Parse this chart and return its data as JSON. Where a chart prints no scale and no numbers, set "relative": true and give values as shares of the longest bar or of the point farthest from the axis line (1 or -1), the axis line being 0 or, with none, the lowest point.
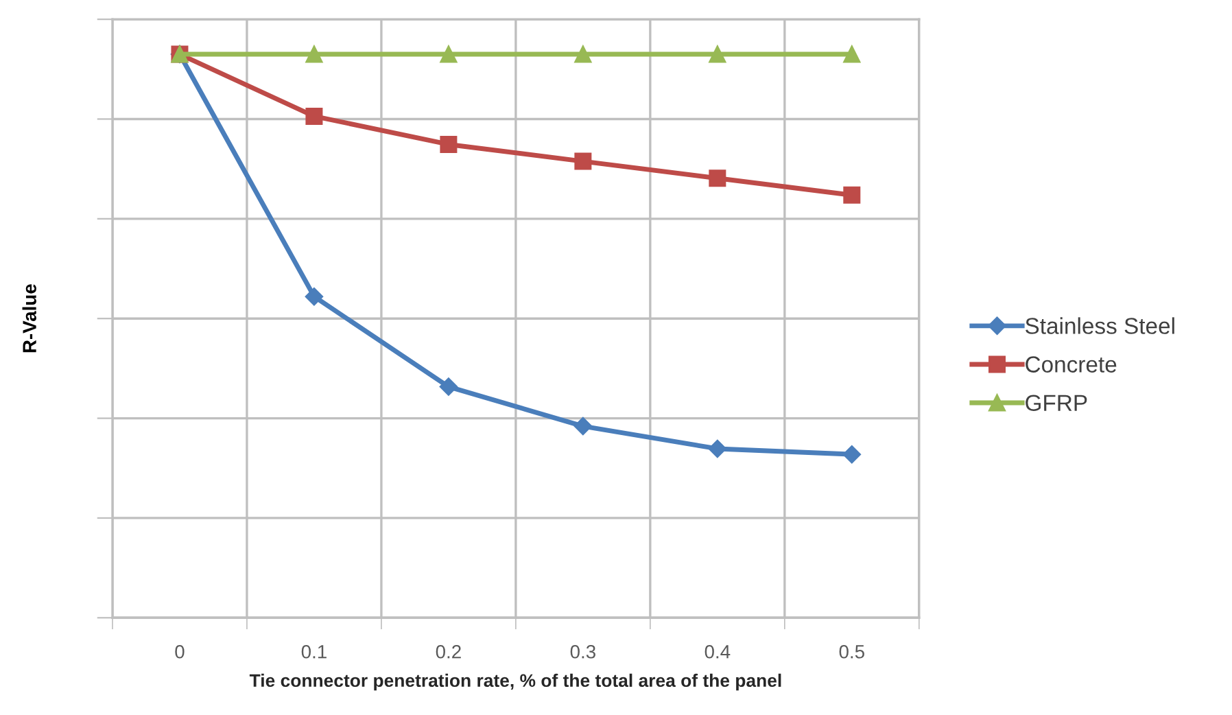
{
  "chart_data": {
    "type": "line",
    "xlabel": "Tie connector penetration rate, % of the total area of the panel",
    "ylabel": "R-Value",
    "categories": [
      "0",
      "0.1",
      "0.2",
      "0.3",
      "0.4",
      "0.5"
    ],
    "relative": true,
    "grid": true,
    "legend": "right",
    "line_style": "solid",
    "series": [
      {
        "name": "Stainless Steel",
        "color": "#4a7ebb",
        "marker": "diamond",
        "values": [
          1,
          0.57,
          0.41,
          0.34,
          0.3,
          0.29
        ]
      },
      {
        "name": "Concrete",
        "color": "#be4b48",
        "marker": "square",
        "values": [
          1,
          0.89,
          0.84,
          0.81,
          0.78,
          0.75
        ]
      },
      {
        "name": "GFRP",
        "color": "#98b954",
        "marker": "triangle",
        "values": [
          1,
          1,
          1,
          1,
          1,
          1
        ]
      }
    ]
  }
}
